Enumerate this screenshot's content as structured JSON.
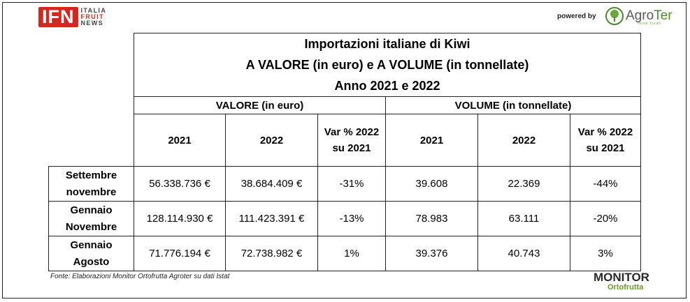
{
  "header": {
    "ifn_logo_letters": "IFN",
    "ifn_logo_words": [
      "ITALIA",
      "FRUIT",
      "NEWS"
    ],
    "powered_by": "powered by",
    "agroter_name_prefix": "Agro",
    "agroter_name_suffix": "Ter",
    "agroter_tagline": "think fresh"
  },
  "table": {
    "title_line1": "Importazioni italiane di Kiwi",
    "title_line2": "A VALORE (in euro) e A VOLUME (in tonnellate)",
    "title_line3": "Anno 2021 e 2022",
    "group_valore": "VALORE (in euro)",
    "group_volume": "VOLUME (in tonnellate)",
    "col_2021": "2021",
    "col_2022": "2022",
    "col_var_line1": "Var % 2022",
    "col_var_line2": "su 2021",
    "rows": [
      {
        "label_line1": "Settembre",
        "label_line2": "novembre",
        "valore_2021": "56.338.736 €",
        "valore_2022": "38.684.409 €",
        "valore_var": "-31%",
        "volume_2021": "39.608",
        "volume_2022": "22.369",
        "volume_var": "-44%"
      },
      {
        "label_line1": "Gennaio",
        "label_line2": "Novembre",
        "valore_2021": "128.114.930 €",
        "valore_2022": "111.423.391 €",
        "valore_var": "-13%",
        "volume_2021": "78.983",
        "volume_2022": "63.111",
        "volume_var": "-20%"
      },
      {
        "label_line1": "Gennaio",
        "label_line2": "Agosto",
        "valore_2021": "71.776.194 €",
        "valore_2022": "72.738.982 €",
        "valore_var": "1%",
        "volume_2021": "39.376",
        "volume_2022": "40.743",
        "volume_var": "3%"
      }
    ]
  },
  "footer": {
    "source": "Fonte: Elaborazioni Monitor Ortofrutta Agroter su dati Istat",
    "monitor_line1": "MONITOR",
    "monitor_line2": "Ortofrutta"
  },
  "colors": {
    "ifn_red": "#d7261e",
    "agroter_green": "#4d8b2e",
    "border": "#222222"
  }
}
